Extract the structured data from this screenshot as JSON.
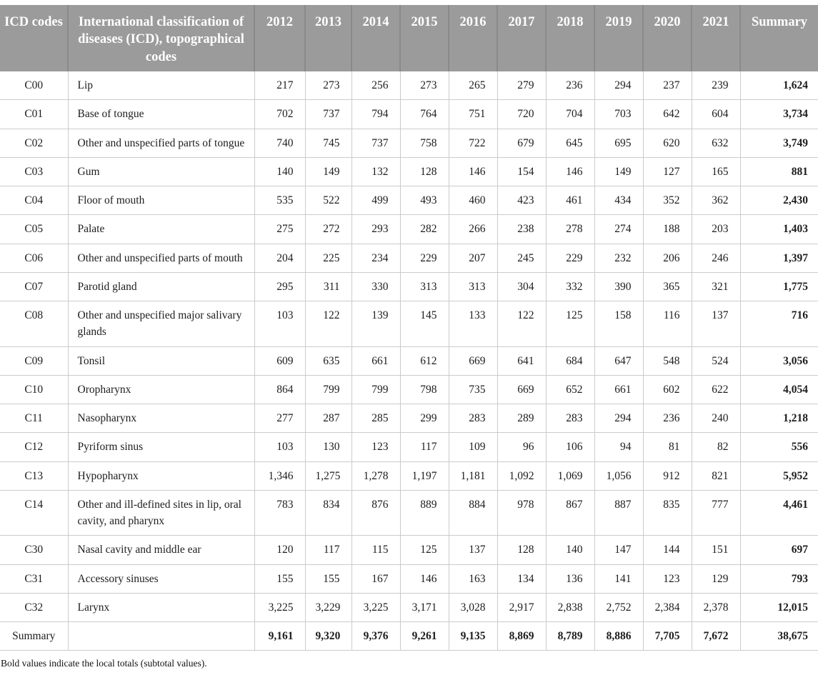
{
  "table": {
    "headers": {
      "icd": "ICD codes",
      "description": "International classification of diseases (ICD), topographical codes",
      "years": [
        "2012",
        "2013",
        "2014",
        "2015",
        "2016",
        "2017",
        "2018",
        "2019",
        "2020",
        "2021"
      ],
      "summary": "Summary"
    },
    "rows": [
      {
        "code": "C00",
        "label": "Lip",
        "values": [
          "217",
          "273",
          "256",
          "273",
          "265",
          "279",
          "236",
          "294",
          "237",
          "239"
        ],
        "summary": "1,624",
        "is_total": false
      },
      {
        "code": "C01",
        "label": "Base of tongue",
        "values": [
          "702",
          "737",
          "794",
          "764",
          "751",
          "720",
          "704",
          "703",
          "642",
          "604"
        ],
        "summary": "3,734",
        "is_total": false
      },
      {
        "code": "C02",
        "label": "Other and unspecified parts of tongue",
        "values": [
          "740",
          "745",
          "737",
          "758",
          "722",
          "679",
          "645",
          "695",
          "620",
          "632"
        ],
        "summary": "3,749",
        "is_total": false
      },
      {
        "code": "C03",
        "label": "Gum",
        "values": [
          "140",
          "149",
          "132",
          "128",
          "146",
          "154",
          "146",
          "149",
          "127",
          "165"
        ],
        "summary": "881",
        "is_total": false
      },
      {
        "code": "C04",
        "label": "Floor of mouth",
        "values": [
          "535",
          "522",
          "499",
          "493",
          "460",
          "423",
          "461",
          "434",
          "352",
          "362"
        ],
        "summary": "2,430",
        "is_total": false
      },
      {
        "code": "C05",
        "label": "Palate",
        "values": [
          "275",
          "272",
          "293",
          "282",
          "266",
          "238",
          "278",
          "274",
          "188",
          "203"
        ],
        "summary": "1,403",
        "is_total": false
      },
      {
        "code": "C06",
        "label": "Other and unspecified parts of mouth",
        "values": [
          "204",
          "225",
          "234",
          "229",
          "207",
          "245",
          "229",
          "232",
          "206",
          "246"
        ],
        "summary": "1,397",
        "is_total": false
      },
      {
        "code": "C07",
        "label": "Parotid gland",
        "values": [
          "295",
          "311",
          "330",
          "313",
          "313",
          "304",
          "332",
          "390",
          "365",
          "321"
        ],
        "summary": "1,775",
        "is_total": false
      },
      {
        "code": "C08",
        "label": "Other and unspecified major salivary glands",
        "values": [
          "103",
          "122",
          "139",
          "145",
          "133",
          "122",
          "125",
          "158",
          "116",
          "137"
        ],
        "summary": "716",
        "is_total": false
      },
      {
        "code": "C09",
        "label": "Tonsil",
        "values": [
          "609",
          "635",
          "661",
          "612",
          "669",
          "641",
          "684",
          "647",
          "548",
          "524"
        ],
        "summary": "3,056",
        "is_total": false
      },
      {
        "code": "C10",
        "label": "Oropharynx",
        "values": [
          "864",
          "799",
          "799",
          "798",
          "735",
          "669",
          "652",
          "661",
          "602",
          "622"
        ],
        "summary": "4,054",
        "is_total": false
      },
      {
        "code": "C11",
        "label": "Nasopharynx",
        "values": [
          "277",
          "287",
          "285",
          "299",
          "283",
          "289",
          "283",
          "294",
          "236",
          "240"
        ],
        "summary": "1,218",
        "is_total": false
      },
      {
        "code": "C12",
        "label": "Pyriform sinus",
        "values": [
          "103",
          "130",
          "123",
          "117",
          "109",
          "96",
          "106",
          "94",
          "81",
          "82"
        ],
        "summary": "556",
        "is_total": false
      },
      {
        "code": "C13",
        "label": "Hypopharynx",
        "values": [
          "1,346",
          "1,275",
          "1,278",
          "1,197",
          "1,181",
          "1,092",
          "1,069",
          "1,056",
          "912",
          "821"
        ],
        "summary": "5,952",
        "is_total": false
      },
      {
        "code": "C14",
        "label": "Other and ill-defined sites in lip, oral cavity, and pharynx",
        "values": [
          "783",
          "834",
          "876",
          "889",
          "884",
          "978",
          "867",
          "887",
          "835",
          "777"
        ],
        "summary": "4,461",
        "is_total": false
      },
      {
        "code": "C30",
        "label": "Nasal cavity and middle ear",
        "values": [
          "120",
          "117",
          "115",
          "125",
          "137",
          "128",
          "140",
          "147",
          "144",
          "151"
        ],
        "summary": "697",
        "is_total": false
      },
      {
        "code": "C31",
        "label": "Accessory sinuses",
        "values": [
          "155",
          "155",
          "167",
          "146",
          "163",
          "134",
          "136",
          "141",
          "123",
          "129"
        ],
        "summary": "793",
        "is_total": false
      },
      {
        "code": "C32",
        "label": "Larynx",
        "values": [
          "3,225",
          "3,229",
          "3,225",
          "3,171",
          "3,028",
          "2,917",
          "2,838",
          "2,752",
          "2,384",
          "2,378"
        ],
        "summary": "12,015",
        "is_total": false
      },
      {
        "code": "Summary",
        "label": "",
        "values": [
          "9,161",
          "9,320",
          "9,376",
          "9,261",
          "9,135",
          "8,869",
          "8,789",
          "8,886",
          "7,705",
          "7,672"
        ],
        "summary": "38,675",
        "is_total": true
      }
    ],
    "footnote": "Bold values indicate the local totals (subtotal values)."
  },
  "colors": {
    "header_bg": "#9b9b9b",
    "header_text": "#ffffff",
    "header_divider": "#8a8a8a",
    "body_border": "#cbcbcb",
    "body_text": "#1d1d1d"
  }
}
